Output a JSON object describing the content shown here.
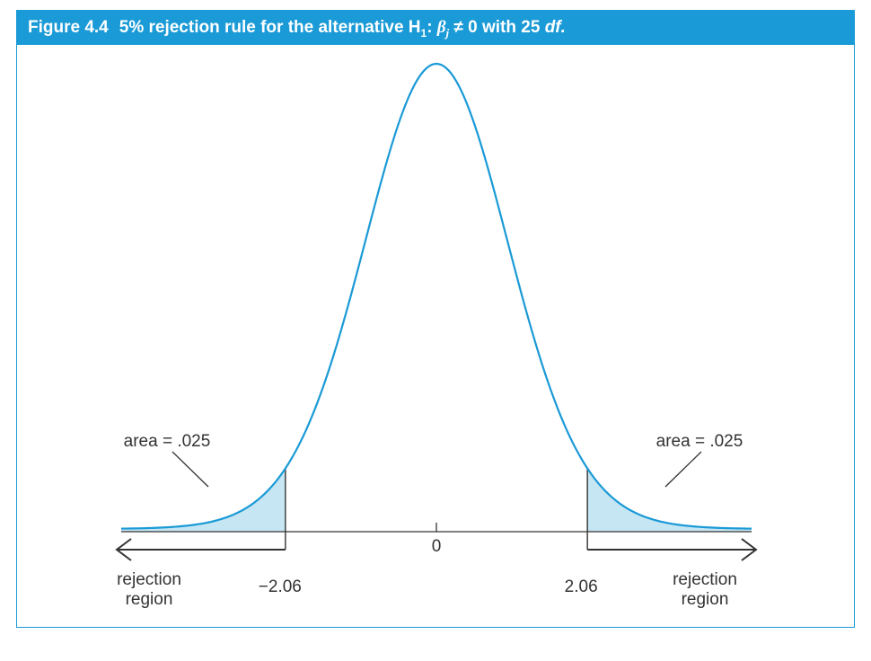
{
  "figure": {
    "number": "Figure 4.4",
    "title_prefix": "5% rejection rule for the alternative H",
    "title_sub": "1",
    "title_colon": ": ",
    "title_beta": "β",
    "title_beta_sub": "j",
    "title_rest": " ≠ 0 with 25 ",
    "title_df": "df."
  },
  "chart_data": {
    "type": "area",
    "distribution": "t",
    "df": 25,
    "significance": 0.05,
    "critical_values": [
      -2.06,
      2.06
    ],
    "center_value": 0,
    "x_range": [
      -4.3,
      4.3
    ],
    "tick_labels": {
      "left": "−2.06",
      "center": "0",
      "right": "2.06"
    },
    "annotations": {
      "left_area": "area = .025",
      "right_area": "area = .025",
      "left_region_line1": "rejection",
      "left_region_line2": "region",
      "right_region_line1": "rejection",
      "right_region_line2": "region"
    },
    "colors": {
      "curve": "#1a9ad6",
      "shade": "#c7e6f3",
      "axis": "#333333"
    }
  }
}
